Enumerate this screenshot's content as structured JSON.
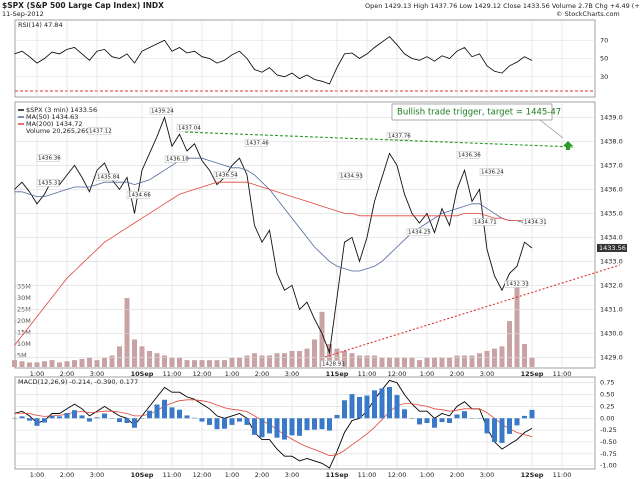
{
  "header": {
    "title": "$SPX (S&P 500 Large Cap Index) INDX",
    "date": "11-Sep-2012",
    "ohlc": "Open 1429.13  High 1437.76  Low 1429.12  Close 1433.56  Volume 2.7B  Chg +4.49 (+0.31%)",
    "credit": "© StockCharts.com"
  },
  "annotation": "Bullish trade trigger, target = 1445-47",
  "chart_data": [
    {
      "type": "line",
      "title": "RSI(14) 47.84",
      "color": "#000000",
      "values": [
        55,
        58,
        52,
        45,
        50,
        57,
        55,
        60,
        62,
        55,
        48,
        58,
        60,
        52,
        50,
        55,
        45,
        58,
        62,
        66,
        70,
        58,
        62,
        56,
        58,
        52,
        50,
        45,
        48,
        54,
        58,
        50,
        38,
        35,
        40,
        32,
        30,
        34,
        28,
        32,
        27,
        25,
        22,
        40,
        55,
        56,
        50,
        55,
        62,
        68,
        74,
        65,
        55,
        50,
        48,
        52,
        47,
        53,
        50,
        58,
        62,
        52,
        55,
        42,
        36,
        34,
        42,
        46,
        52,
        47.84,
        null,
        null,
        null,
        null,
        null,
        null,
        null
      ],
      "ylim": [
        10,
        90
      ],
      "yticks": [
        30,
        50,
        70
      ],
      "grid": true
    },
    {
      "type": "line",
      "categories": [
        null,
        null,
        null,
        "1:00",
        null,
        null,
        null,
        "2:00",
        null,
        null,
        null,
        "3:00",
        null,
        null,
        null,
        null,
        null,
        "10Sep",
        null,
        null,
        null,
        "11:00",
        null,
        null,
        null,
        "12:00",
        null,
        null,
        null,
        "1:00",
        null,
        null,
        null,
        "2:00",
        null,
        null,
        null,
        "3:00",
        null,
        null,
        null,
        null,
        null,
        "11Sep",
        null,
        null,
        null,
        "11:00",
        null,
        null,
        null,
        "12:00",
        null,
        null,
        null,
        "1:00",
        null,
        null,
        null,
        "2:00",
        null,
        null,
        null,
        "3:00",
        null,
        null,
        null,
        null,
        null,
        "12Sep",
        null,
        null,
        null,
        "11:00",
        null,
        null,
        null
      ],
      "series": [
        {
          "name": "$SPX (3 min) 1433.56",
          "color": "#111111",
          "values": [
            1436.0,
            1436.3,
            1435.9,
            1435.4,
            1435.8,
            1436.4,
            1436.2,
            1436.6,
            1437.0,
            1436.5,
            1435.9,
            1436.8,
            1437.1,
            1436.4,
            1436.0,
            1436.5,
            1435.0,
            1436.8,
            1437.5,
            1438.2,
            1439.0,
            1437.8,
            1438.3,
            1437.6,
            1437.9,
            1437.2,
            1436.8,
            1436.2,
            1436.5,
            1437.0,
            1437.3,
            1436.6,
            1434.5,
            1433.8,
            1434.3,
            1432.5,
            1431.8,
            1432.0,
            1431.0,
            1431.3,
            1430.6,
            1430.0,
            1429.2,
            1431.5,
            1433.8,
            1434.0,
            1433.0,
            1434.0,
            1435.5,
            1436.5,
            1437.5,
            1437.0,
            1435.8,
            1435.0,
            1434.6,
            1435.0,
            1434.2,
            1435.2,
            1434.5,
            1436.0,
            1436.8,
            1435.5,
            1436.0,
            1433.5,
            1432.4,
            1431.8,
            1432.5,
            1432.8,
            1433.8,
            1433.56,
            null,
            null,
            null,
            null,
            null,
            null,
            null
          ]
        },
        {
          "name": "MA(50) 1434.63",
          "color": "#4f6a9c",
          "values": [
            1435.9,
            1435.9,
            1435.8,
            1435.7,
            1435.7,
            1435.8,
            1435.9,
            1436.0,
            1436.1,
            1436.1,
            1436.1,
            1436.2,
            1436.3,
            1436.3,
            1436.3,
            1436.3,
            1436.2,
            1436.3,
            1436.4,
            1436.6,
            1436.8,
            1437.0,
            1437.2,
            1437.3,
            1437.3,
            1437.3,
            1437.2,
            1437.1,
            1437.0,
            1436.9,
            1436.9,
            1436.8,
            1436.6,
            1436.3,
            1436.0,
            1435.6,
            1435.2,
            1434.8,
            1434.4,
            1434.0,
            1433.6,
            1433.3,
            1433.0,
            1432.8,
            1432.7,
            1432.6,
            1432.6,
            1432.7,
            1432.8,
            1433.0,
            1433.3,
            1433.6,
            1433.9,
            1434.2,
            1434.4,
            1434.6,
            1434.8,
            1435.0,
            1435.1,
            1435.2,
            1435.3,
            1435.4,
            1435.4,
            1435.2,
            1435.0,
            1434.8,
            1434.7,
            1434.7,
            1434.6,
            1434.63,
            null,
            null,
            null,
            null,
            null,
            null,
            null
          ]
        },
        {
          "name": "MA(200) 1434.72",
          "color": "#e0463a",
          "values": [
            1429.5,
            1429.9,
            1430.3,
            1430.7,
            1431.1,
            1431.5,
            1431.9,
            1432.3,
            1432.6,
            1432.9,
            1433.2,
            1433.5,
            1433.8,
            1434.0,
            1434.2,
            1434.4,
            1434.6,
            1434.8,
            1435.0,
            1435.2,
            1435.4,
            1435.6,
            1435.8,
            1435.9,
            1436.0,
            1436.1,
            1436.2,
            1436.3,
            1436.3,
            1436.3,
            1436.3,
            1436.3,
            1436.2,
            1436.1,
            1436.0,
            1435.9,
            1435.8,
            1435.7,
            1435.6,
            1435.5,
            1435.4,
            1435.3,
            1435.2,
            1435.1,
            1435.0,
            1435.0,
            1434.9,
            1434.9,
            1434.9,
            1434.9,
            1434.9,
            1434.9,
            1434.9,
            1434.9,
            1434.9,
            1434.9,
            1434.9,
            1434.9,
            1434.9,
            1434.9,
            1435.0,
            1435.0,
            1435.0,
            1434.9,
            1434.8,
            1434.8,
            1434.7,
            1434.7,
            1434.7,
            1434.72,
            null,
            null,
            null,
            null,
            null,
            null,
            null
          ]
        }
      ],
      "ylim": [
        1428.6,
        1439.6
      ],
      "yticks": [
        {
          "value": 1429,
          "label": "1429.0"
        },
        {
          "value": 1430,
          "label": "1430.0"
        },
        {
          "value": 1431,
          "label": "1431.0"
        },
        {
          "value": 1432,
          "label": "1432.0"
        },
        {
          "value": 1433,
          "label": "1433.0"
        },
        {
          "value": 1434,
          "label": "1434.0"
        },
        {
          "value": 1435,
          "label": "1435.0"
        },
        {
          "value": 1436,
          "label": "1436.0"
        },
        {
          "value": 1437,
          "label": "1437.0"
        },
        {
          "value": 1438,
          "label": "1438.0"
        },
        {
          "value": 1439,
          "label": "1439.0"
        }
      ],
      "grid": true,
      "price_labels": [
        "1436.36",
        "1435.37",
        "1437.12",
        "1435.84",
        "1439.24",
        "1437.04",
        "1436.10",
        "1434.66",
        "1436.54",
        "1437.46",
        "1434.93",
        "1437.76",
        "1436.36",
        "1436.24",
        "1434.25",
        "1434.71",
        "1434.31",
        "1432.33",
        "1428.93"
      ]
    },
    {
      "type": "bar",
      "title": "Volume 20,265,269",
      "color": "#c9a3a3",
      "values": [
        3000000,
        2500000,
        2000000,
        2000000,
        2500000,
        3000000,
        2000000,
        2500000,
        3000000,
        3500000,
        4000000,
        3000000,
        4000000,
        5000000,
        9000000,
        30000000,
        12000000,
        9000000,
        7000000,
        6000000,
        5000000,
        4000000,
        4000000,
        3000000,
        3000000,
        3000000,
        3000000,
        3000000,
        3000000,
        4000000,
        4000000,
        5000000,
        6000000,
        5000000,
        5000000,
        6000000,
        6000000,
        7000000,
        7000000,
        8000000,
        12000000,
        24000000,
        10000000,
        8000000,
        7000000,
        6000000,
        5000000,
        5000000,
        5000000,
        4000000,
        4000000,
        4000000,
        4000000,
        4000000,
        3000000,
        4000000,
        4000000,
        4000000,
        4000000,
        5000000,
        5000000,
        5000000,
        6000000,
        7000000,
        8000000,
        9000000,
        20000000,
        35000000,
        10000000,
        4000000,
        null,
        null,
        null,
        null,
        null,
        null,
        null
      ],
      "ylim": [
        0,
        37000000
      ],
      "yticks": [
        {
          "value": 5000000,
          "label": "5M"
        },
        {
          "value": 10000000,
          "label": "10M"
        },
        {
          "value": 15000000,
          "label": "15M"
        },
        {
          "value": 20000000,
          "label": "20M"
        },
        {
          "value": 25000000,
          "label": "25M"
        },
        {
          "value": 30000000,
          "label": "30M"
        },
        {
          "value": 35000000,
          "label": "35M"
        }
      ]
    },
    {
      "type": "line",
      "title": "MACD(12,26,9) -0.214, -0.390, 0.177",
      "series": [
        {
          "color": "#000000",
          "values": [
            0.1,
            0.15,
            0.05,
            -0.1,
            -0.05,
            0.1,
            0.1,
            0.2,
            0.3,
            0.2,
            0.05,
            0.15,
            0.25,
            0.15,
            0.05,
            0.0,
            -0.15,
            0.05,
            0.25,
            0.45,
            0.65,
            0.55,
            0.55,
            0.45,
            0.4,
            0.3,
            0.2,
            0.05,
            0.0,
            0.05,
            0.1,
            0.0,
            -0.3,
            -0.45,
            -0.45,
            -0.65,
            -0.8,
            -0.8,
            -0.9,
            -0.85,
            -0.9,
            -0.95,
            -1.05,
            -0.7,
            -0.3,
            -0.05,
            0.0,
            0.15,
            0.4,
            0.6,
            0.8,
            0.75,
            0.5,
            0.3,
            0.15,
            0.15,
            0.0,
            0.1,
            0.05,
            0.25,
            0.35,
            0.2,
            0.2,
            -0.2,
            -0.5,
            -0.65,
            -0.55,
            -0.45,
            -0.3,
            -0.214,
            null,
            null,
            null,
            null,
            null,
            null,
            null
          ]
        },
        {
          "color": "#e0463a",
          "values": [
            0.1,
            0.11,
            0.1,
            0.06,
            0.04,
            0.05,
            0.06,
            0.09,
            0.13,
            0.14,
            0.12,
            0.13,
            0.15,
            0.15,
            0.13,
            0.1,
            0.05,
            0.05,
            0.09,
            0.16,
            0.26,
            0.32,
            0.37,
            0.39,
            0.39,
            0.37,
            0.34,
            0.28,
            0.22,
            0.19,
            0.17,
            0.14,
            0.05,
            -0.05,
            -0.13,
            -0.24,
            -0.35,
            -0.44,
            -0.53,
            -0.6,
            -0.66,
            -0.72,
            -0.79,
            -0.77,
            -0.68,
            -0.56,
            -0.45,
            -0.33,
            -0.19,
            -0.03,
            0.14,
            0.26,
            0.31,
            0.31,
            0.28,
            0.25,
            0.2,
            0.18,
            0.15,
            0.17,
            0.2,
            0.2,
            0.2,
            0.12,
            0.0,
            -0.13,
            -0.22,
            -0.3,
            -0.35,
            -0.39,
            null,
            null,
            null,
            null,
            null,
            null,
            null
          ]
        },
        {
          "type": "bar",
          "color": "#3a78c8",
          "values": [
            0,
            0.04,
            -0.05,
            -0.16,
            -0.09,
            0.05,
            0.04,
            0.11,
            0.17,
            0.06,
            -0.07,
            0.02,
            0.1,
            0,
            -0.08,
            -0.1,
            -0.2,
            0,
            0.16,
            0.29,
            0.39,
            0.23,
            0.18,
            0.06,
            0.01,
            -0.07,
            -0.14,
            -0.23,
            -0.22,
            -0.14,
            -0.07,
            -0.14,
            -0.35,
            -0.4,
            -0.32,
            -0.41,
            -0.45,
            -0.36,
            -0.37,
            -0.25,
            -0.24,
            -0.23,
            -0.26,
            0.07,
            0.38,
            0.51,
            0.45,
            0.48,
            0.59,
            0.63,
            0.66,
            0.49,
            0.19,
            -0.01,
            -0.13,
            -0.1,
            -0.2,
            -0.08,
            -0.1,
            0.08,
            0.15,
            0,
            0,
            -0.32,
            -0.5,
            -0.52,
            -0.33,
            -0.15,
            0.05,
            0.177,
            null,
            null,
            null,
            null,
            null,
            null,
            null
          ]
        }
      ],
      "ylim": [
        -1.05,
        0.85
      ],
      "yticks": [
        {
          "value": -1,
          "label": "-1.00"
        },
        -0.75,
        {
          "value": -0.5,
          "label": "-0.50"
        },
        -0.25,
        {
          "value": 0,
          "label": "0.00"
        },
        0.25,
        {
          "value": 0.5,
          "label": "0.50"
        },
        0.75
      ],
      "grid": true
    }
  ]
}
